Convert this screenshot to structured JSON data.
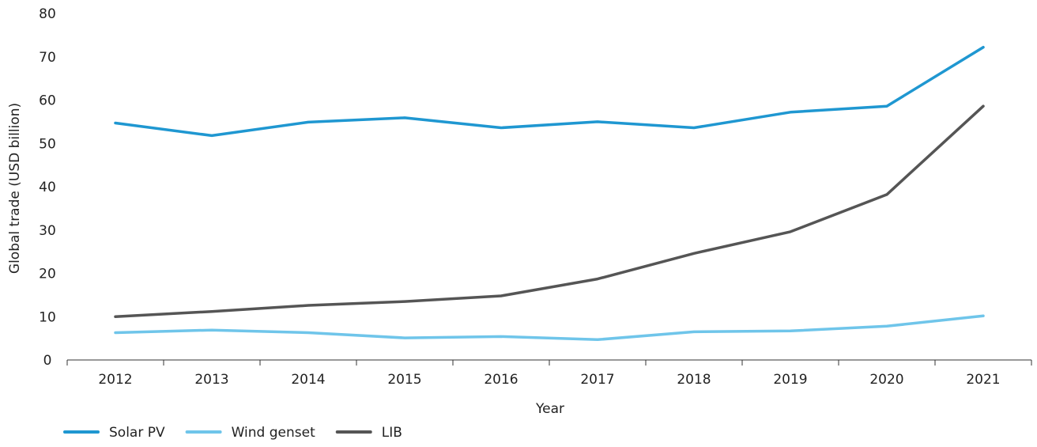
{
  "chart_data": {
    "type": "line",
    "title": "",
    "xlabel": "Year",
    "ylabel": "Global trade (USD billion)",
    "x": [
      "2012",
      "2013",
      "2014",
      "2015",
      "2016",
      "2017",
      "2018",
      "2019",
      "2020",
      "2021"
    ],
    "ylim": [
      0,
      80
    ],
    "yticks": [
      "0",
      "10",
      "20",
      "30",
      "40",
      "50",
      "60",
      "70",
      "80"
    ],
    "grid": false,
    "legend_position": "bottom-left",
    "series": [
      {
        "name": "Solar PV",
        "color": "#1f97d1",
        "values": [
          54.7,
          51.8,
          54.9,
          55.9,
          53.6,
          55.0,
          53.6,
          57.2,
          58.6,
          72.2
        ]
      },
      {
        "name": "Wind genset",
        "color": "#6fc5ea",
        "values": [
          6.3,
          6.9,
          6.3,
          5.1,
          5.4,
          4.7,
          6.5,
          6.7,
          7.8,
          10.2
        ]
      },
      {
        "name": "LIB",
        "color": "#555555",
        "values": [
          10.0,
          11.2,
          12.6,
          13.5,
          14.8,
          18.7,
          24.6,
          29.6,
          38.2,
          58.6
        ]
      }
    ]
  }
}
